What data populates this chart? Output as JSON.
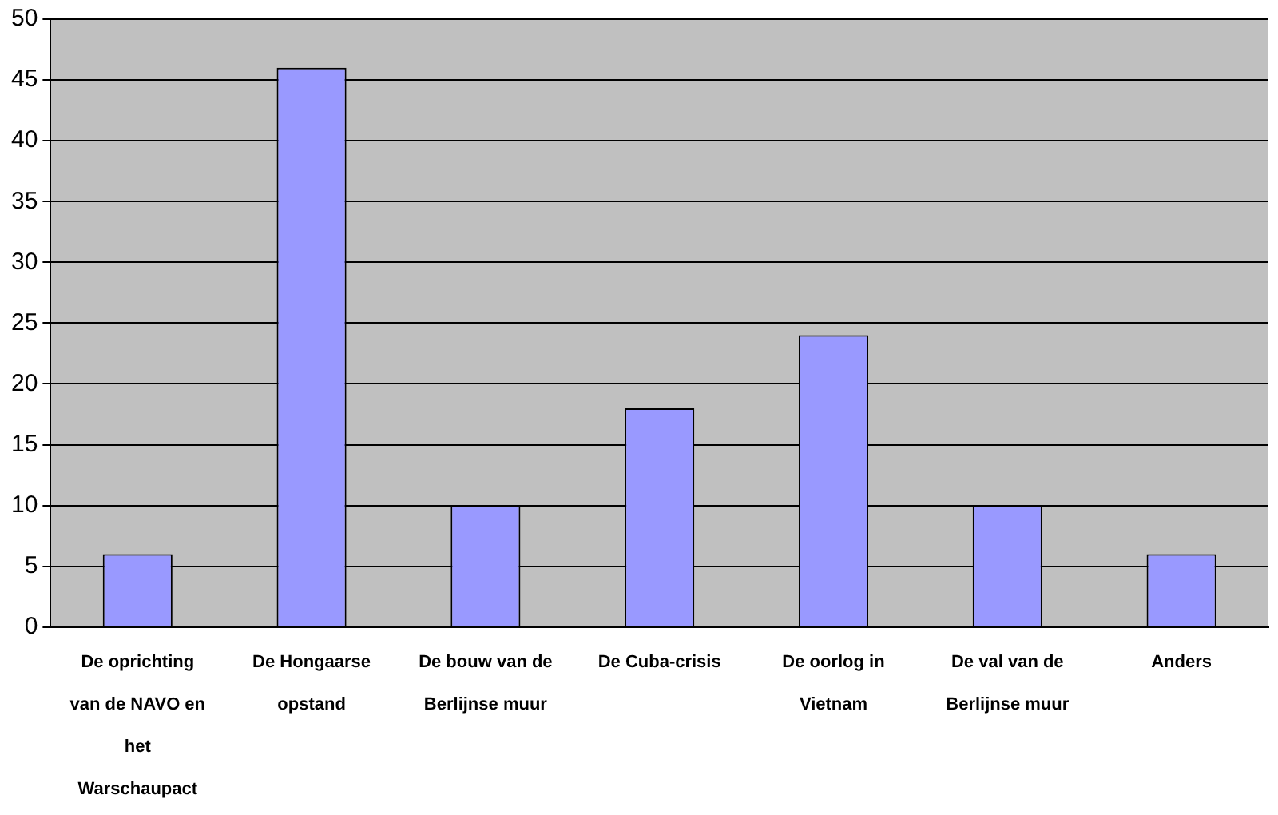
{
  "chart_data": {
    "type": "bar",
    "categories": [
      "De oprichting van de NAVO en het Warschaupact",
      "De Hongaarse opstand",
      "De bouw van de Berlijnse muur",
      "De Cuba-crisis",
      "De oorlog in Vietnam",
      "De val van de Berlijnse muur",
      "Anders"
    ],
    "values": [
      6,
      46,
      10,
      18,
      24,
      10,
      6
    ],
    "color": "#9999ff",
    "ylim": [
      0,
      50
    ],
    "yticks": [
      0,
      5,
      10,
      15,
      20,
      25,
      30,
      35,
      40,
      45,
      50
    ],
    "grid": "y",
    "legend": false
  }
}
